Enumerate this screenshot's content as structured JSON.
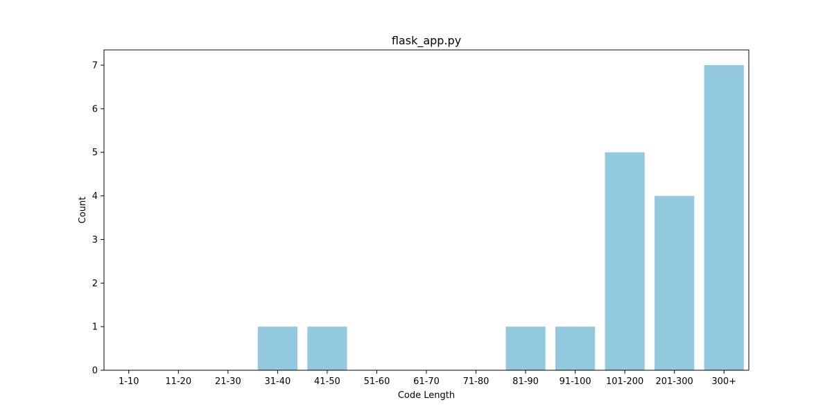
{
  "chart_data": {
    "type": "bar",
    "title": "flask_app.py",
    "xlabel": "Code Length",
    "ylabel": "Count",
    "categories": [
      "1-10",
      "11-20",
      "21-30",
      "31-40",
      "41-50",
      "51-60",
      "61-70",
      "71-80",
      "81-90",
      "91-100",
      "101-200",
      "201-300",
      "300+"
    ],
    "values": [
      0,
      0,
      0,
      1,
      1,
      0,
      0,
      0,
      1,
      1,
      5,
      4,
      7
    ],
    "ylim": [
      0,
      7.35
    ],
    "yticks": [
      0,
      1,
      2,
      3,
      4,
      5,
      6,
      7
    ],
    "grid": false,
    "legend": "none",
    "bar_color": "#92c9df"
  }
}
